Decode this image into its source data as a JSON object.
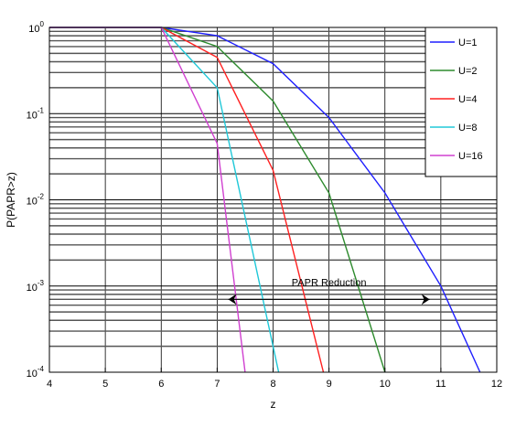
{
  "chart_data": {
    "type": "line",
    "xlabel": "z",
    "ylabel": "P(PAPR>z)",
    "xlim": [
      4,
      12
    ],
    "ylim": [
      0.0001,
      1
    ],
    "yscale": "log",
    "grid": true,
    "legend_position": "top-right",
    "x_ticks": [
      "4",
      "5",
      "6",
      "7",
      "8",
      "9",
      "10",
      "11",
      "12"
    ],
    "y_ticks": [
      {
        "base": "10",
        "exp": "0",
        "value": 1
      },
      {
        "base": "10",
        "exp": "-1",
        "value": 0.1
      },
      {
        "base": "10",
        "exp": "-2",
        "value": 0.01
      },
      {
        "base": "10",
        "exp": "-3",
        "value": 0.001
      },
      {
        "base": "10",
        "exp": "-4",
        "value": 0.0001
      }
    ],
    "series": [
      {
        "name": "U=1",
        "color": "#1f1fff",
        "x": [
          4,
          6,
          7,
          8,
          9,
          10,
          11,
          11.7
        ],
        "y": [
          1,
          1,
          0.8,
          0.38,
          0.09,
          0.012,
          0.001,
          0.0001
        ]
      },
      {
        "name": "U=2",
        "color": "#2e8b2e",
        "x": [
          4,
          6,
          7,
          8,
          9,
          10
        ],
        "y": [
          1,
          1,
          0.6,
          0.14,
          0.012,
          0.0001
        ]
      },
      {
        "name": "U=4",
        "color": "#ff2020",
        "x": [
          4,
          6,
          7,
          8,
          8.9
        ],
        "y": [
          1,
          1,
          0.45,
          0.022,
          0.0001
        ]
      },
      {
        "name": "U=8",
        "color": "#20c8d8",
        "x": [
          4,
          6,
          7,
          8.1
        ],
        "y": [
          1,
          1,
          0.2,
          0.0001
        ]
      },
      {
        "name": "U=16",
        "color": "#d040d0",
        "x": [
          4,
          6,
          7,
          7.5
        ],
        "y": [
          1,
          1,
          0.045,
          0.0001
        ]
      }
    ],
    "annotation": {
      "text": "PAPR Reduction",
      "arrow_from_x": 7.2,
      "arrow_to_x": 10.8,
      "arrow_y": 0.0007
    }
  }
}
